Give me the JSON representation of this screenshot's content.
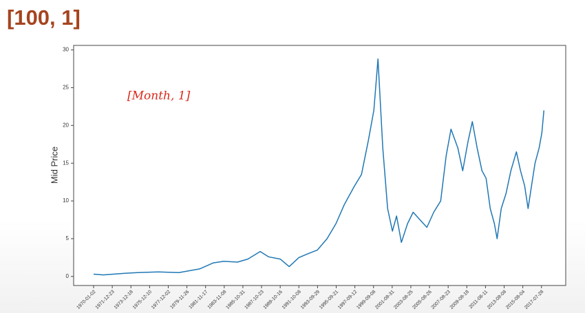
{
  "header": {
    "title": "[100, 1]"
  },
  "chart_data": {
    "type": "line",
    "ylabel": "Mid Price",
    "annotation": "[Month, 1]",
    "x": [
      0,
      258,
      812,
      1181,
      1734,
      2288,
      2841,
      3210,
      3487,
      3856,
      4133,
      4465,
      4686,
      5000,
      5240,
      5498,
      5738,
      5996,
      6255,
      6494,
      6716,
      6993,
      7177,
      7362,
      7509,
      7620,
      7749,
      7878,
      8007,
      8118,
      8247,
      8413,
      8561,
      8745,
      8930,
      9114,
      9299,
      9446,
      9576,
      9760,
      9889,
      10037,
      10148,
      10277,
      10406,
      10517,
      10627,
      10738,
      10812,
      10922,
      11052,
      11181,
      11328,
      11439,
      11550,
      11642,
      11734,
      11827,
      11937,
      12011,
      12066
    ],
    "series": [
      {
        "name": "Mid Price",
        "color": "#1f77b4",
        "values": [
          0.3,
          0.2,
          0.4,
          0.5,
          0.6,
          0.5,
          1.0,
          1.8,
          2.0,
          1.9,
          2.3,
          3.3,
          2.6,
          2.3,
          1.3,
          2.5,
          3.0,
          3.5,
          5.0,
          7.0,
          9.5,
          12,
          13.5,
          18,
          22,
          28.8,
          17,
          9,
          6,
          8,
          4.5,
          7,
          8.5,
          7.5,
          6.5,
          8.5,
          10,
          16,
          19.5,
          17,
          14,
          18,
          20.5,
          17,
          14,
          13,
          9,
          7,
          5,
          9,
          11,
          14,
          16.5,
          14,
          12,
          9,
          12,
          15,
          17,
          19,
          22
        ]
      }
    ],
    "xlim": [
      -535,
      12650
    ],
    "ylim": [
      -1.2,
      30.6
    ],
    "yticks": [
      0,
      5,
      10,
      15,
      20,
      25,
      30
    ],
    "xticks": [
      {
        "value": 0,
        "label": "1970-01-02"
      },
      {
        "value": 500,
        "label": "1971-12-23"
      },
      {
        "value": 1000,
        "label": "1973-12-18"
      },
      {
        "value": 1500,
        "label": "1975-12-10"
      },
      {
        "value": 2000,
        "label": "1977-12-02"
      },
      {
        "value": 2500,
        "label": "1979-11-26"
      },
      {
        "value": 3000,
        "label": "1981-11-17"
      },
      {
        "value": 3500,
        "label": "1983-11-08"
      },
      {
        "value": 4000,
        "label": "1985-10-31"
      },
      {
        "value": 4500,
        "label": "1987-10-23"
      },
      {
        "value": 5000,
        "label": "1989-10-16"
      },
      {
        "value": 5500,
        "label": "1991-10-08"
      },
      {
        "value": 6000,
        "label": "1993-09-29"
      },
      {
        "value": 6500,
        "label": "1995-09-21"
      },
      {
        "value": 7000,
        "label": "1997-09-12"
      },
      {
        "value": 7500,
        "label": "1999-09-08"
      },
      {
        "value": 8000,
        "label": "2001-08-31"
      },
      {
        "value": 8500,
        "label": "2003-08-25"
      },
      {
        "value": 9000,
        "label": "2005-08-26"
      },
      {
        "value": 9500,
        "label": "2007-08-23"
      },
      {
        "value": 10000,
        "label": "2009-08-18"
      },
      {
        "value": 10500,
        "label": "2011-08-11"
      },
      {
        "value": 11000,
        "label": "2013-08-08"
      },
      {
        "value": 11500,
        "label": "2015-08-04"
      },
      {
        "value": 12000,
        "label": "2017-07-28"
      }
    ],
    "grid": false
  }
}
